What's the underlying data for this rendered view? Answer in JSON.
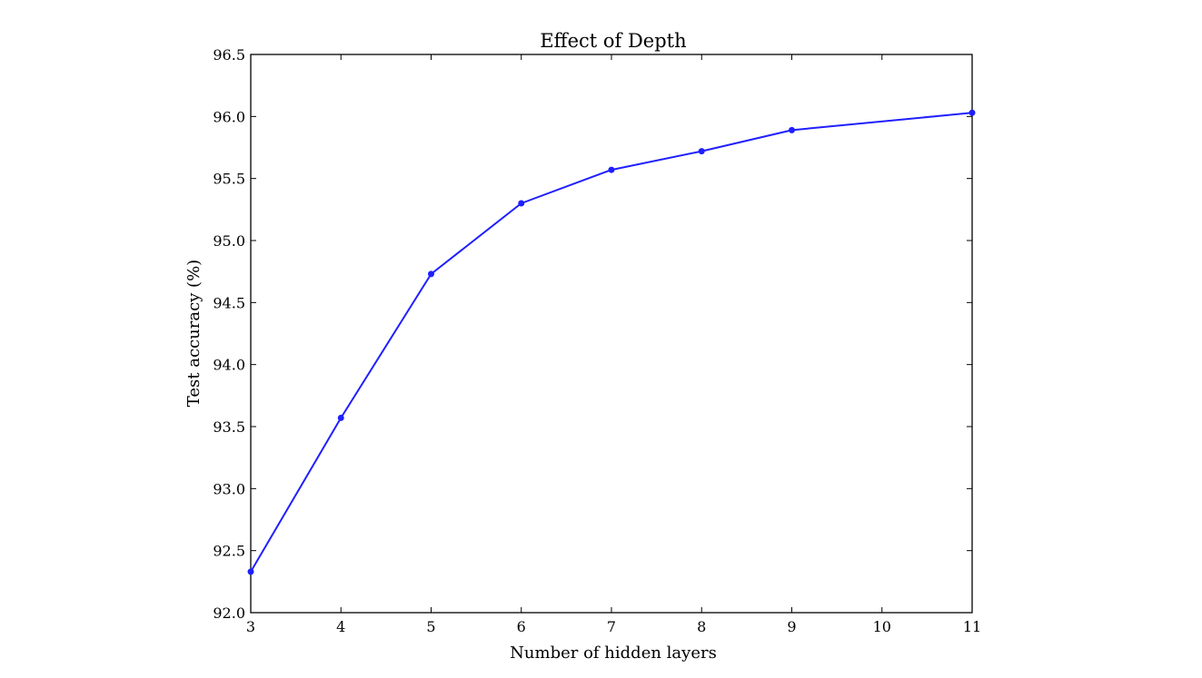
{
  "chart_data": {
    "type": "line",
    "title": "Effect of Depth",
    "xlabel": "Number of hidden layers",
    "ylabel": "Test accuracy (%)",
    "xlim": [
      3,
      11
    ],
    "ylim": [
      92.0,
      96.5
    ],
    "xticks": [
      3,
      4,
      5,
      6,
      7,
      8,
      9,
      10,
      11
    ],
    "yticks": [
      "92.0",
      "92.5",
      "93.0",
      "93.5",
      "94.0",
      "94.5",
      "95.0",
      "95.5",
      "96.0",
      "96.5"
    ],
    "grid": false,
    "series": [
      {
        "color": "#1f1fff",
        "x": [
          3,
          4,
          5,
          6,
          7,
          8,
          9,
          11
        ],
        "y": [
          92.33,
          93.57,
          94.73,
          95.3,
          95.57,
          95.72,
          95.89,
          96.03
        ]
      }
    ]
  }
}
